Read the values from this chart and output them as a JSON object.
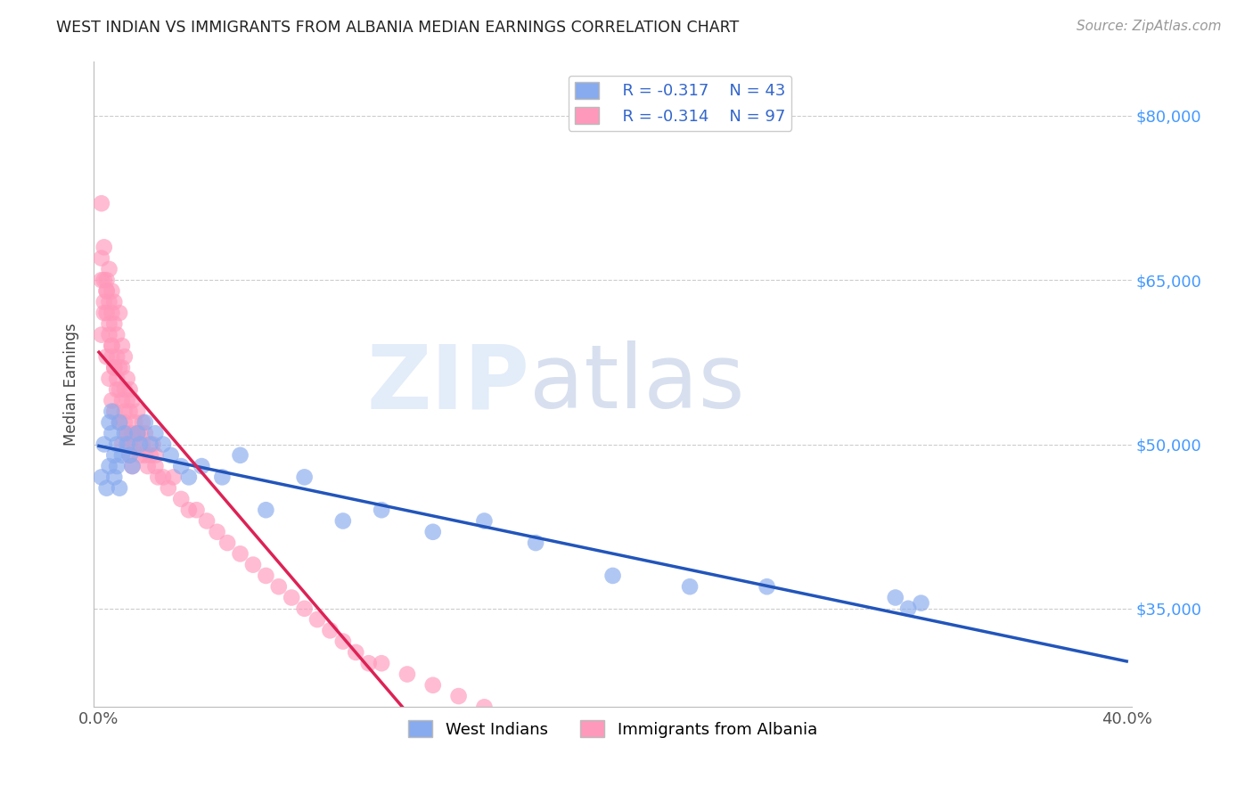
{
  "title": "WEST INDIAN VS IMMIGRANTS FROM ALBANIA MEDIAN EARNINGS CORRELATION CHART",
  "source_text": "Source: ZipAtlas.com",
  "ylabel": "Median Earnings",
  "watermark_zip": "ZIP",
  "watermark_atlas": "atlas",
  "xlim": [
    -0.002,
    0.402
  ],
  "ylim": [
    26000,
    85000
  ],
  "xticks": [
    0.0,
    0.05,
    0.1,
    0.15,
    0.2,
    0.25,
    0.3,
    0.35,
    0.4
  ],
  "xticklabels": [
    "0.0%",
    "",
    "",
    "",
    "",
    "",
    "",
    "",
    "40.0%"
  ],
  "ytick_positions": [
    35000,
    50000,
    65000,
    80000
  ],
  "ytick_labels": [
    "$35,000",
    "$50,000",
    "$65,000",
    "$80,000"
  ],
  "legend_r1": "R = -0.317",
  "legend_n1": "N = 43",
  "legend_r2": "R = -0.314",
  "legend_n2": "N = 97",
  "color_blue": "#88aaee",
  "color_pink": "#ff99bb",
  "color_blue_line": "#2255bb",
  "color_pink_line": "#dd2255",
  "color_right_ytick": "#4499ff",
  "background_color": "#ffffff",
  "grid_color": "#cccccc",
  "west_indian_x": [
    0.001,
    0.002,
    0.003,
    0.004,
    0.004,
    0.005,
    0.005,
    0.006,
    0.006,
    0.007,
    0.007,
    0.008,
    0.008,
    0.009,
    0.01,
    0.011,
    0.012,
    0.013,
    0.015,
    0.016,
    0.018,
    0.02,
    0.022,
    0.025,
    0.028,
    0.032,
    0.035,
    0.04,
    0.048,
    0.055,
    0.065,
    0.08,
    0.095,
    0.11,
    0.13,
    0.15,
    0.17,
    0.2,
    0.23,
    0.26,
    0.31,
    0.315,
    0.32
  ],
  "west_indian_y": [
    47000,
    50000,
    46000,
    52000,
    48000,
    51000,
    53000,
    49000,
    47000,
    50000,
    48000,
    52000,
    46000,
    49000,
    51000,
    50000,
    49000,
    48000,
    51000,
    50000,
    52000,
    50000,
    51000,
    50000,
    49000,
    48000,
    47000,
    48000,
    47000,
    49000,
    44000,
    47000,
    43000,
    44000,
    42000,
    43000,
    41000,
    38000,
    37000,
    37000,
    36000,
    35000,
    35500
  ],
  "albania_x": [
    0.001,
    0.001,
    0.002,
    0.002,
    0.002,
    0.003,
    0.003,
    0.003,
    0.004,
    0.004,
    0.004,
    0.005,
    0.005,
    0.005,
    0.005,
    0.006,
    0.006,
    0.006,
    0.007,
    0.007,
    0.007,
    0.008,
    0.008,
    0.008,
    0.009,
    0.009,
    0.009,
    0.01,
    0.01,
    0.01,
    0.011,
    0.011,
    0.011,
    0.012,
    0.012,
    0.012,
    0.013,
    0.013,
    0.014,
    0.014,
    0.015,
    0.015,
    0.016,
    0.016,
    0.017,
    0.017,
    0.018,
    0.018,
    0.019,
    0.02,
    0.021,
    0.022,
    0.022,
    0.023,
    0.025,
    0.027,
    0.029,
    0.032,
    0.035,
    0.038,
    0.042,
    0.046,
    0.05,
    0.055,
    0.06,
    0.065,
    0.07,
    0.075,
    0.08,
    0.085,
    0.09,
    0.095,
    0.1,
    0.105,
    0.11,
    0.12,
    0.13,
    0.14,
    0.15,
    0.001,
    0.001,
    0.002,
    0.003,
    0.003,
    0.004,
    0.004,
    0.005,
    0.005,
    0.006,
    0.006,
    0.007,
    0.008,
    0.009,
    0.01,
    0.011,
    0.012,
    0.013
  ],
  "albania_y": [
    72000,
    67000,
    65000,
    68000,
    63000,
    65000,
    62000,
    64000,
    63000,
    66000,
    60000,
    59000,
    62000,
    64000,
    58000,
    57000,
    61000,
    63000,
    58000,
    56000,
    60000,
    57000,
    62000,
    55000,
    59000,
    57000,
    54000,
    55000,
    58000,
    52000,
    54000,
    56000,
    51000,
    53000,
    55000,
    50000,
    51000,
    54000,
    50000,
    52000,
    51000,
    53000,
    49000,
    51000,
    52000,
    50000,
    49000,
    51000,
    48000,
    49000,
    50000,
    48000,
    49000,
    47000,
    47000,
    46000,
    47000,
    45000,
    44000,
    44000,
    43000,
    42000,
    41000,
    40000,
    39000,
    38000,
    37000,
    36000,
    35000,
    34000,
    33000,
    32000,
    31000,
    30000,
    30000,
    29000,
    28000,
    27000,
    26000,
    65000,
    60000,
    62000,
    64000,
    58000,
    61000,
    56000,
    59000,
    54000,
    57000,
    53000,
    55000,
    52000,
    50000,
    53000,
    51000,
    49000,
    48000
  ]
}
